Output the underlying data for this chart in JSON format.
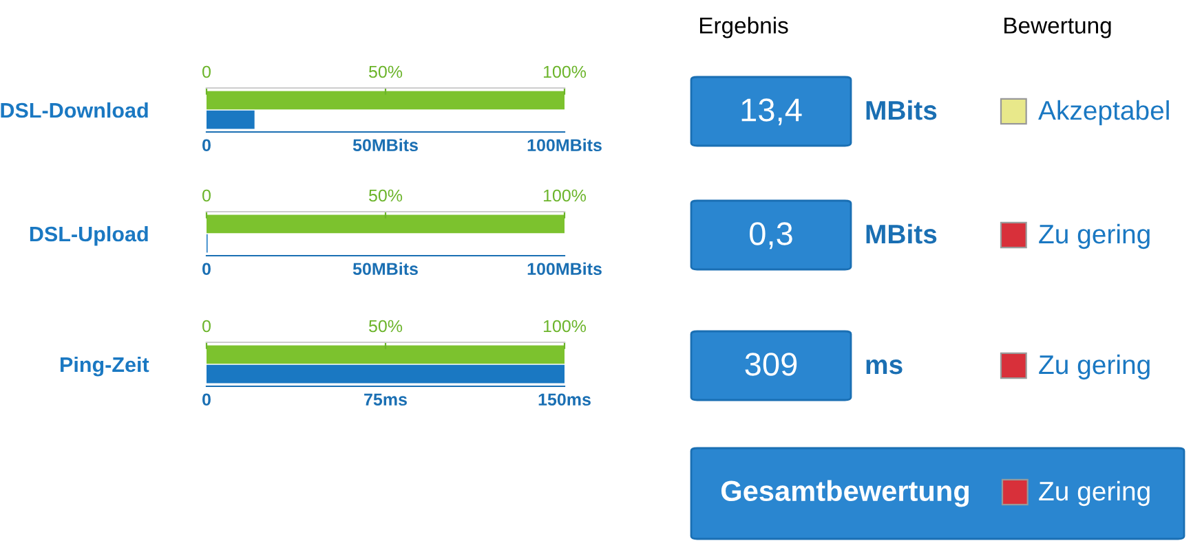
{
  "chart_data": [
    {
      "type": "bar",
      "orientation": "horizontal",
      "categories": [
        "DSL-Download"
      ],
      "series": [
        {
          "color": "#7cc22e",
          "values": [
            100
          ],
          "axis": "x2"
        },
        {
          "color": "#1a78c2",
          "values": [
            13.4
          ]
        }
      ],
      "xlim": [
        0,
        100
      ],
      "xticks": [
        {
          "value": 0,
          "label": "0"
        },
        {
          "value": 50,
          "label": "50MBits"
        },
        {
          "value": 100,
          "label": "100MBits"
        }
      ],
      "x2lim": [
        0,
        100
      ],
      "x2ticks": [
        {
          "value": 0,
          "label": "0"
        },
        {
          "value": 50,
          "label": "50%"
        },
        {
          "value": 100,
          "label": "100%"
        }
      ],
      "annotations": [
        "13,4",
        "MBits",
        "Akzeptabel"
      ]
    },
    {
      "type": "bar",
      "orientation": "horizontal",
      "categories": [
        "DSL-Upload"
      ],
      "series": [
        {
          "color": "#7cc22e",
          "values": [
            100
          ],
          "axis": "x2"
        },
        {
          "color": "#1a78c2",
          "values": [
            0.3
          ]
        }
      ],
      "xlim": [
        0,
        100
      ],
      "xticks": [
        {
          "value": 0,
          "label": "0"
        },
        {
          "value": 50,
          "label": "50MBits"
        },
        {
          "value": 100,
          "label": "100MBits"
        }
      ],
      "x2lim": [
        0,
        100
      ],
      "x2ticks": [
        {
          "value": 0,
          "label": "0"
        },
        {
          "value": 50,
          "label": "50%"
        },
        {
          "value": 100,
          "label": "100%"
        }
      ],
      "annotations": [
        "0,3",
        "MBits",
        "Zu gering"
      ]
    },
    {
      "type": "bar",
      "orientation": "horizontal",
      "categories": [
        "Ping-Zeit"
      ],
      "series": [
        {
          "color": "#7cc22e",
          "values": [
            100
          ],
          "axis": "x2"
        },
        {
          "color": "#1a78c2",
          "values": [
            150
          ]
        }
      ],
      "xlim": [
        0,
        150
      ],
      "xticks": [
        {
          "value": 0,
          "label": "0"
        },
        {
          "value": 75,
          "label": "75ms"
        },
        {
          "value": 150,
          "label": "150ms"
        }
      ],
      "x2lim": [
        0,
        100
      ],
      "x2ticks": [
        {
          "value": 0,
          "label": "0"
        },
        {
          "value": 50,
          "label": "50%"
        },
        {
          "value": 100,
          "label": "100%"
        }
      ],
      "annotations": [
        "309",
        "ms",
        "Zu gering"
      ]
    },
    {
      "type": "other",
      "annotations": [
        "Ergebnis",
        "Bewertung",
        "Gesamtbewertung",
        "Zu gering"
      ]
    }
  ]
}
